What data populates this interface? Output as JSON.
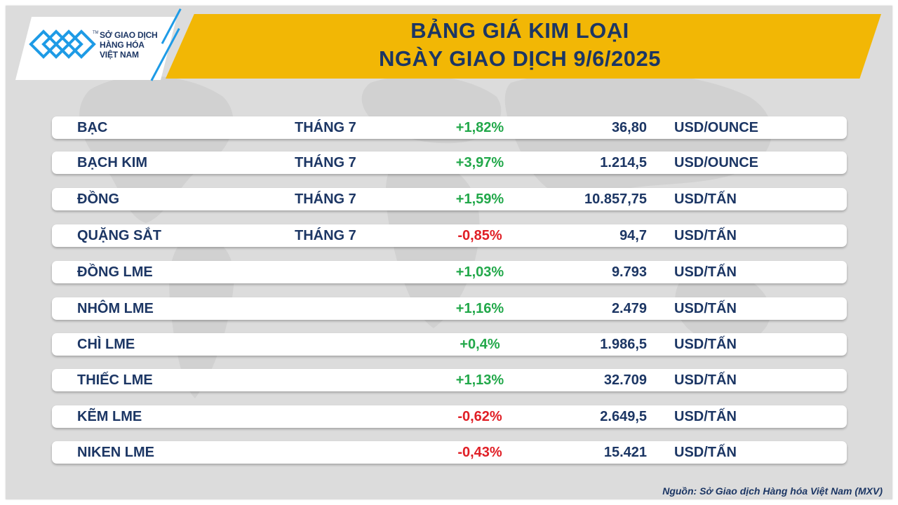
{
  "logo": {
    "line1": "SỞ GIAO DỊCH",
    "line2": "HÀNG HÓA",
    "line3": "VIỆT NAM",
    "tm": "TM"
  },
  "header": {
    "title_line1": "BẢNG GIÁ KIM LOẠI",
    "title_line2": "NGÀY GIAO DỊCH 9/6/2025"
  },
  "rows": [
    {
      "name": "BẠC",
      "month": "THÁNG 7",
      "change": "+1,82%",
      "direction": "up",
      "price": "36,80",
      "unit": "USD/OUNCE"
    },
    {
      "name": "BẠCH KIM",
      "month": "THÁNG 7",
      "change": "+3,97%",
      "direction": "up",
      "price": "1.214,5",
      "unit": "USD/OUNCE"
    },
    {
      "name": "ĐỒNG",
      "month": "THÁNG 7",
      "change": "+1,59%",
      "direction": "up",
      "price": "10.857,75",
      "unit": "USD/TẤN"
    },
    {
      "name": "QUẶNG SẮT",
      "month": "THÁNG 7",
      "change": "-0,85%",
      "direction": "down",
      "price": "94,7",
      "unit": "USD/TẤN"
    },
    {
      "name": "ĐỒNG LME",
      "month": "",
      "change": "+1,03%",
      "direction": "up",
      "price": "9.793",
      "unit": "USD/TẤN"
    },
    {
      "name": "NHÔM LME",
      "month": "",
      "change": "+1,16%",
      "direction": "up",
      "price": "2.479",
      "unit": "USD/TẤN"
    },
    {
      "name": "CHÌ LME",
      "month": "",
      "change": "+0,4%",
      "direction": "up",
      "price": "1.986,5",
      "unit": "USD/TẤN"
    },
    {
      "name": "THIẾC LME",
      "month": "",
      "change": "+1,13%",
      "direction": "up",
      "price": "32.709",
      "unit": "USD/TẤN"
    },
    {
      "name": "KẼM LME",
      "month": "",
      "change": "-0,62%",
      "direction": "down",
      "price": "2.649,5",
      "unit": "USD/TẤN"
    },
    {
      "name": "NIKEN LME",
      "month": "",
      "change": "-0,43%",
      "direction": "down",
      "price": "15.421",
      "unit": "USD/TẤN"
    }
  ],
  "footer": {
    "source": "Nguồn: Sở Giao dịch Hàng hóa Việt Nam (MXV)"
  },
  "colors": {
    "navy": "#1c3664",
    "gold": "#f2b705",
    "positive": "#22a84a",
    "negative": "#e01f26",
    "background": "#dcdcdc",
    "logo_blue": "#1e9be6"
  }
}
